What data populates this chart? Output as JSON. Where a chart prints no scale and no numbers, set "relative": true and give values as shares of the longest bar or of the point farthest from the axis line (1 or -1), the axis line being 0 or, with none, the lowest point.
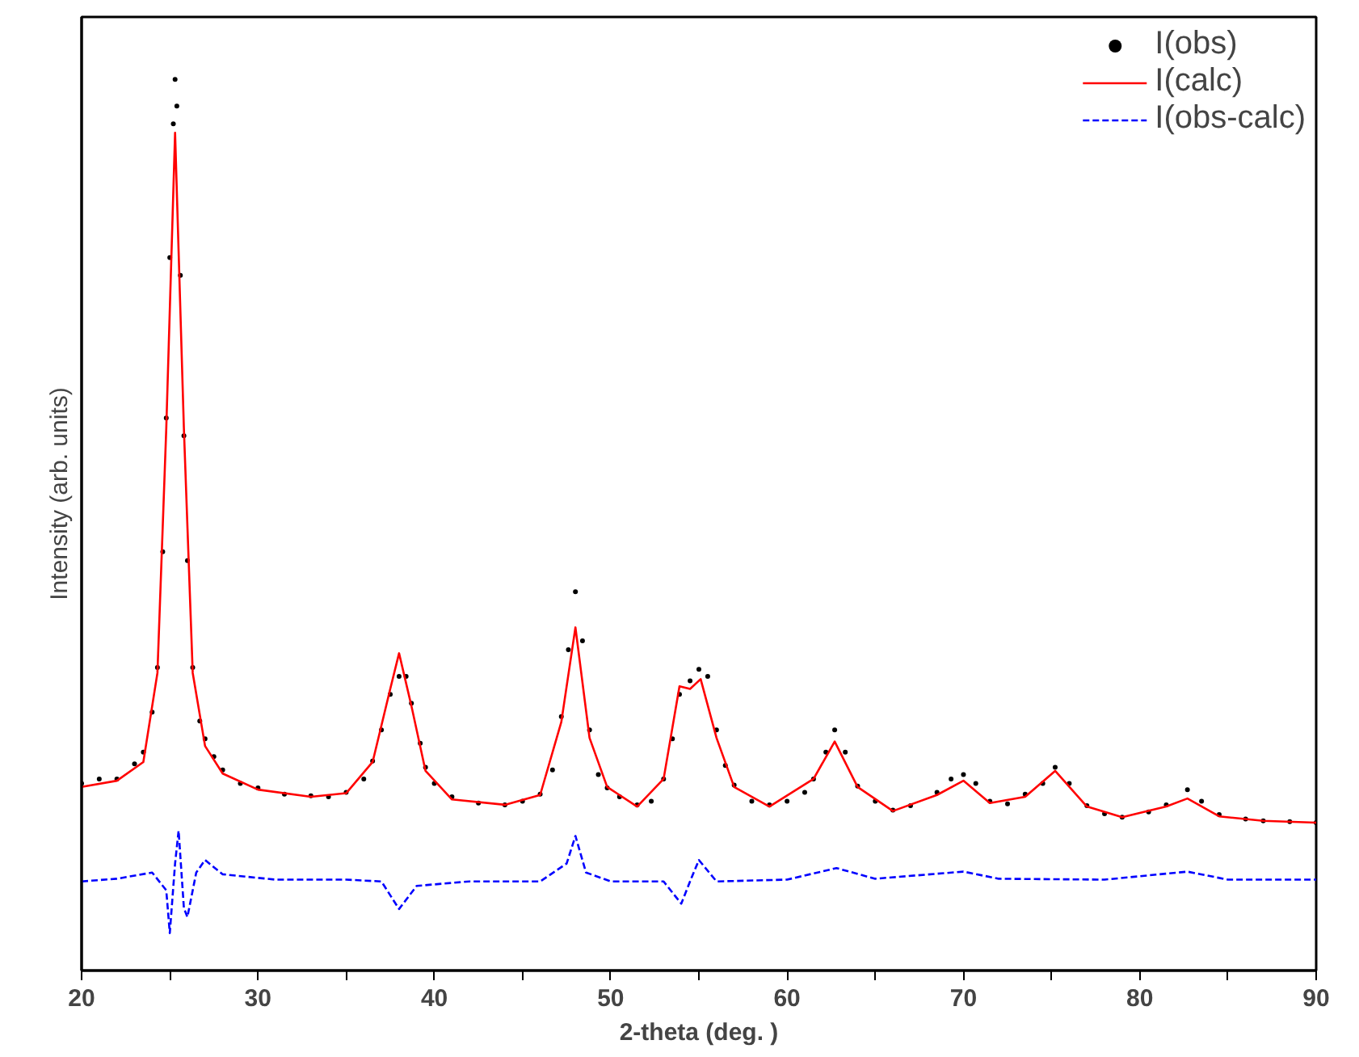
{
  "chart_data": {
    "type": "line",
    "xlabel": "2-theta (deg. )",
    "ylabel": "Intensity (arb. units)",
    "relative": true,
    "xlim": [
      20,
      90
    ],
    "xticks": [
      20,
      30,
      40,
      50,
      60,
      70,
      80,
      90
    ],
    "tick_labels": "x",
    "grid": false,
    "legend": "top right",
    "series": [
      {
        "name": "I(obs)",
        "type": "scatter",
        "marker": "circle",
        "color": "#000000",
        "x": [
          20,
          21,
          22,
          23,
          23.5,
          24,
          24.3,
          24.6,
          24.8,
          25,
          25.2,
          25.3,
          25.4,
          25.6,
          25.8,
          26,
          26.3,
          26.7,
          27,
          27.5,
          28,
          29,
          30,
          31.5,
          33,
          34,
          35,
          36,
          36.5,
          37,
          37.5,
          38,
          38.4,
          38.7,
          39.2,
          39.5,
          40,
          41,
          42.5,
          44,
          45,
          46,
          46.7,
          47.2,
          47.6,
          48,
          48.4,
          48.8,
          49.3,
          49.8,
          50.5,
          51.5,
          52.3,
          53,
          53.5,
          53.9,
          54.5,
          55,
          55.5,
          56,
          56.5,
          57,
          58,
          59,
          60,
          61,
          61.5,
          62.2,
          62.7,
          63.3,
          64,
          65,
          66,
          67,
          68.5,
          69.3,
          70,
          70.7,
          71.5,
          72.5,
          73.5,
          74.5,
          75.2,
          76,
          77,
          78,
          79,
          80.5,
          81.5,
          82.7,
          83.5,
          84.5,
          86,
          87,
          88.5,
          90
        ],
        "values": [
          0.21,
          0.215,
          0.215,
          0.232,
          0.245,
          0.29,
          0.34,
          0.47,
          0.62,
          0.8,
          0.95,
          1.0,
          0.97,
          0.78,
          0.6,
          0.46,
          0.34,
          0.28,
          0.26,
          0.24,
          0.225,
          0.21,
          0.205,
          0.198,
          0.196,
          0.195,
          0.2,
          0.215,
          0.235,
          0.27,
          0.31,
          0.33,
          0.33,
          0.3,
          0.255,
          0.228,
          0.21,
          0.195,
          0.188,
          0.186,
          0.19,
          0.198,
          0.225,
          0.285,
          0.36,
          0.425,
          0.37,
          0.27,
          0.22,
          0.205,
          0.195,
          0.186,
          0.19,
          0.215,
          0.26,
          0.31,
          0.325,
          0.338,
          0.33,
          0.27,
          0.23,
          0.208,
          0.19,
          0.186,
          0.19,
          0.2,
          0.215,
          0.245,
          0.27,
          0.245,
          0.207,
          0.19,
          0.18,
          0.185,
          0.2,
          0.215,
          0.22,
          0.21,
          0.19,
          0.187,
          0.198,
          0.21,
          0.228,
          0.21,
          0.185,
          0.176,
          0.172,
          0.178,
          0.186,
          0.203,
          0.19,
          0.175,
          0.17,
          0.168,
          0.167,
          0.166
        ]
      },
      {
        "name": "I(calc)",
        "line_style": "solid",
        "color": "#ff0000",
        "x": [
          20,
          22,
          23.5,
          24.3,
          24.8,
          25.3,
          25.8,
          26.3,
          27,
          28,
          30,
          33,
          35,
          36.5,
          37.5,
          38,
          38.7,
          39.5,
          41,
          44,
          46,
          47.2,
          48,
          48.8,
          49.8,
          51.5,
          53,
          53.9,
          54.5,
          55.1,
          56,
          57,
          59,
          61.5,
          62.7,
          64,
          66,
          68.5,
          70,
          71.5,
          73.5,
          75.2,
          77,
          79,
          81.5,
          82.7,
          84.5,
          87,
          90
        ],
        "values": [
          0.206,
          0.213,
          0.234,
          0.334,
          0.608,
          0.94,
          0.608,
          0.334,
          0.252,
          0.221,
          0.203,
          0.195,
          0.199,
          0.234,
          0.316,
          0.356,
          0.297,
          0.224,
          0.192,
          0.186,
          0.197,
          0.279,
          0.385,
          0.261,
          0.206,
          0.184,
          0.215,
          0.319,
          0.316,
          0.327,
          0.261,
          0.206,
          0.184,
          0.215,
          0.257,
          0.206,
          0.179,
          0.197,
          0.213,
          0.188,
          0.195,
          0.224,
          0.184,
          0.172,
          0.184,
          0.193,
          0.173,
          0.168,
          0.166
        ]
      },
      {
        "name": "I(obs-calc)",
        "type": "line",
        "line_style": "dashed",
        "color": "#0000ff",
        "x": [
          20,
          22,
          24,
          24.8,
          25,
          25.3,
          25.5,
          25.8,
          26,
          26.5,
          27,
          28,
          31,
          35,
          37,
          38,
          39,
          42,
          46,
          47.5,
          48,
          48.6,
          50,
          53,
          54,
          54.6,
          55,
          56,
          60,
          62.8,
          65,
          70,
          72,
          78,
          82.7,
          85,
          90
        ],
        "values": [
          0.1,
          0.103,
          0.11,
          0.09,
          0.042,
          0.12,
          0.157,
          0.07,
          0.06,
          0.11,
          0.124,
          0.108,
          0.102,
          0.102,
          0.1,
          0.069,
          0.095,
          0.1,
          0.1,
          0.12,
          0.151,
          0.11,
          0.1,
          0.1,
          0.075,
          0.105,
          0.124,
          0.1,
          0.102,
          0.115,
          0.103,
          0.111,
          0.103,
          0.102,
          0.111,
          0.102,
          0.102
        ]
      }
    ]
  }
}
